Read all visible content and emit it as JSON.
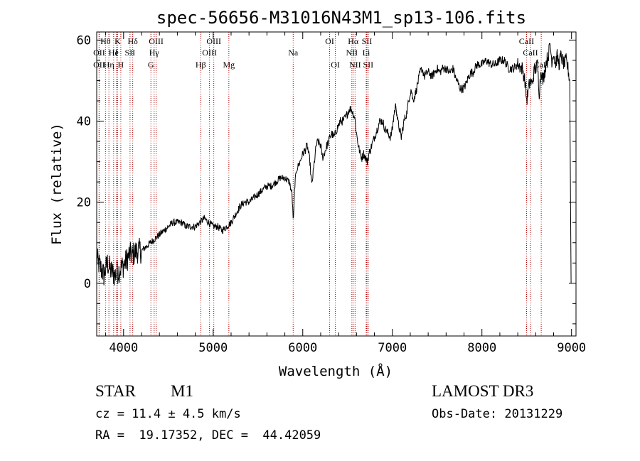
{
  "chart_data": {
    "type": "line",
    "title": "spec-56656-M31016N43M1_sp13-106.fits",
    "xlabel": "Wavelength (Å)",
    "ylabel": "Flux (relative)",
    "xlim": [
      3700,
      9050
    ],
    "ylim": [
      -13,
      62
    ],
    "xticks": [
      4000,
      5000,
      6000,
      7000,
      8000,
      9000
    ],
    "xtick_labels": [
      "4000",
      "5000",
      "6000",
      "7000",
      "8000",
      "9000"
    ],
    "yticks": [
      0,
      20,
      40,
      60
    ],
    "ytick_labels": [
      "0",
      "20",
      "40",
      "60"
    ],
    "grid": false,
    "series": [
      {
        "name": "flux",
        "x": [
          3700,
          3740,
          3780,
          3820,
          3860,
          3900,
          3940,
          3980,
          4020,
          4060,
          4100,
          4150,
          4200,
          4250,
          4300,
          4350,
          4400,
          4450,
          4500,
          4550,
          4600,
          4650,
          4700,
          4750,
          4800,
          4850,
          4900,
          4950,
          5000,
          5050,
          5100,
          5150,
          5200,
          5250,
          5300,
          5350,
          5400,
          5450,
          5500,
          5550,
          5600,
          5650,
          5700,
          5750,
          5800,
          5850,
          5880,
          5895,
          5910,
          5930,
          5970,
          6000,
          6030,
          6050,
          6080,
          6100,
          6130,
          6150,
          6170,
          6200,
          6220,
          6240,
          6270,
          6290,
          6300,
          6320,
          6350,
          6380,
          6400,
          6420,
          6450,
          6480,
          6500,
          6520,
          6540,
          6560,
          6580,
          6600,
          6620,
          6640,
          6660,
          6680,
          6700,
          6720,
          6740,
          6770,
          6800,
          6830,
          6860,
          6890,
          6920,
          6950,
          6980,
          7000,
          7020,
          7040,
          7060,
          7080,
          7100,
          7130,
          7160,
          7190,
          7210,
          7230,
          7260,
          7290,
          7310,
          7330,
          7360,
          7390,
          7410,
          7440,
          7470,
          7500,
          7530,
          7560,
          7600,
          7640,
          7680,
          7700,
          7720,
          7740,
          7760,
          7790,
          7820,
          7850,
          7880,
          7900,
          7920,
          7950,
          8000,
          8050,
          8100,
          8150,
          8200,
          8250,
          8300,
          8350,
          8400,
          8450,
          8480,
          8500,
          8520,
          8540,
          8560,
          8580,
          8600,
          8620,
          8640,
          8660,
          8680,
          8700,
          8720,
          8740,
          8760,
          8780,
          8800,
          8820,
          8840,
          8860,
          8880,
          8900,
          8920,
          8940,
          8960,
          8980,
          8990,
          9000
        ],
        "y": [
          6,
          4,
          2,
          5,
          3,
          2,
          3,
          4,
          5,
          7,
          7,
          8,
          8,
          9,
          10,
          11,
          12,
          13,
          14,
          15,
          15,
          15,
          14,
          14,
          14,
          15,
          16,
          15,
          14,
          14,
          13,
          14,
          15,
          17,
          19,
          20,
          20,
          21,
          22,
          23,
          24,
          24,
          25,
          26,
          26,
          25,
          22,
          15,
          24,
          28,
          30,
          32,
          33,
          34,
          30,
          24,
          30,
          34,
          35,
          34,
          31,
          32,
          34,
          35,
          36,
          37,
          36,
          38,
          39,
          40,
          40,
          41,
          42,
          43,
          43,
          42,
          41,
          37,
          34,
          32,
          31,
          32,
          31,
          30,
          32,
          34,
          36,
          38,
          40,
          40,
          38,
          37,
          36,
          38,
          42,
          44,
          40,
          38,
          36,
          40,
          42,
          46,
          48,
          45,
          47,
          50,
          52,
          53,
          51,
          52,
          52,
          51,
          52,
          53,
          52,
          53,
          53,
          52,
          53,
          51,
          50,
          49,
          48,
          48,
          49,
          51,
          52,
          52,
          53,
          54,
          54,
          55,
          54,
          54,
          55,
          55,
          53,
          53,
          54,
          53,
          50,
          45,
          48,
          50,
          49,
          52,
          53,
          54,
          47,
          53,
          50,
          52,
          55,
          56,
          59,
          55,
          57,
          54,
          56,
          54,
          56,
          55,
          54,
          55,
          53,
          50,
          0,
          0
        ]
      }
    ],
    "lines": [
      {
        "name": "Hθ",
        "wave": 3798,
        "row": 1
      },
      {
        "name": "OII",
        "wave": 3727,
        "row": 2
      },
      {
        "name": "OII",
        "wave": 3727,
        "row": 3
      },
      {
        "name": "Hη",
        "wave": 3836,
        "row": 3
      },
      {
        "name": "He",
        "wave": 3889,
        "row": 2
      },
      {
        "name": "K",
        "wave": 3934,
        "row": 1
      },
      {
        "name": "H",
        "wave": 3969,
        "row": 3
      },
      {
        "name": "I",
        "wave": 3920,
        "row": 2
      },
      {
        "name": "SII",
        "wave": 4072,
        "row": 2
      },
      {
        "name": "Hδ",
        "wave": 4102,
        "row": 1
      },
      {
        "name": "OIII",
        "wave": 4363,
        "row": 1
      },
      {
        "name": "Hγ",
        "wave": 4341,
        "row": 2
      },
      {
        "name": "G",
        "wave": 4305,
        "row": 3
      },
      {
        "name": "Hβ",
        "wave": 4861,
        "row": 3
      },
      {
        "name": "OIII",
        "wave": 5007,
        "row": 1
      },
      {
        "name": "OIII",
        "wave": 4959,
        "row": 2
      },
      {
        "name": "Mg",
        "wave": 5175,
        "row": 3
      },
      {
        "name": "Na",
        "wave": 5893,
        "row": 2
      },
      {
        "name": "OI",
        "wave": 6300,
        "row": 1
      },
      {
        "name": "OI",
        "wave": 6364,
        "row": 3
      },
      {
        "name": "Hα",
        "wave": 6563,
        "row": 1
      },
      {
        "name": "NII",
        "wave": 6548,
        "row": 2
      },
      {
        "name": "NII",
        "wave": 6584,
        "row": 3
      },
      {
        "name": "SII",
        "wave": 6716,
        "row": 1
      },
      {
        "name": "Li",
        "wave": 6708,
        "row": 2
      },
      {
        "name": "SII",
        "wave": 6731,
        "row": 3
      },
      {
        "name": "CaII",
        "wave": 8498,
        "row": 1
      },
      {
        "name": "CaII",
        "wave": 8542,
        "row": 2
      },
      {
        "name": "CaII",
        "wave": 8662,
        "row": 3
      }
    ]
  },
  "info": {
    "object_class": "STAR",
    "subclass": "M1",
    "survey": "LAMOST DR3",
    "cz": "cz = 11.4 ± 4.5 km/s",
    "obs_date": "Obs-Date: 20131229",
    "coords": "RA =  19.17352, DEC =  44.42059"
  },
  "colors": {
    "axis": "#000000",
    "spectrum": "#000000",
    "line_marker": "#b00000"
  }
}
